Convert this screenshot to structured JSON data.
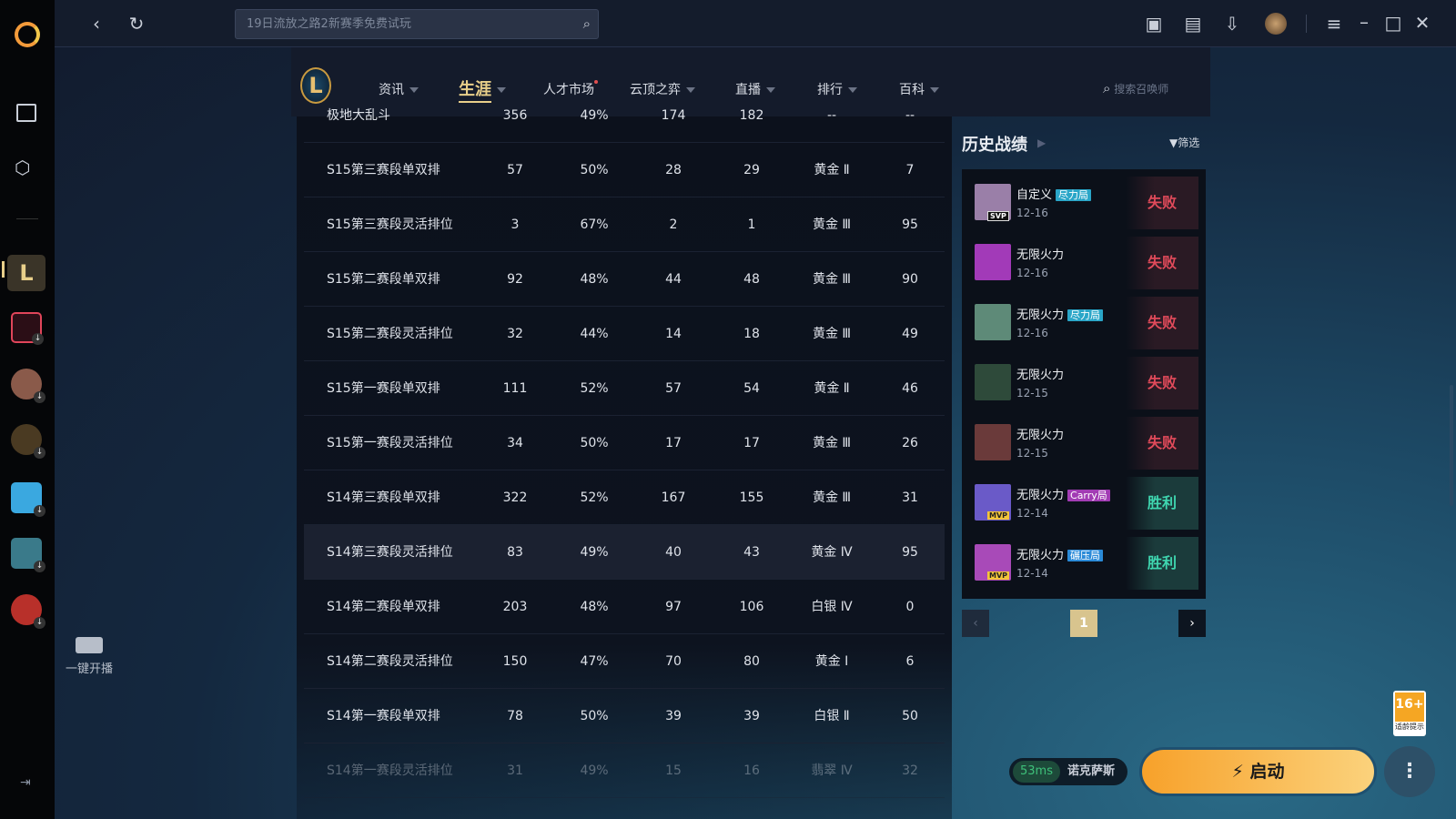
{
  "topbar": {
    "search_placeholder": "19日流放之路2新赛季免费试玩"
  },
  "sidebar": {
    "live_label": "一键开播"
  },
  "nav": {
    "items": [
      {
        "label": "资讯"
      },
      {
        "label": "生涯"
      },
      {
        "label": "人才市场"
      },
      {
        "label": "云顶之弈"
      },
      {
        "label": "直播"
      },
      {
        "label": "排行"
      },
      {
        "label": "百科"
      }
    ],
    "active": "生涯",
    "search_placeholder": "搜索召唤师"
  },
  "table": {
    "rows": [
      [
        "极地大乱斗",
        "356",
        "49%",
        "174",
        "182",
        "--",
        "--"
      ],
      [
        "S15第三赛段单双排",
        "57",
        "50%",
        "28",
        "29",
        "黄金 Ⅱ",
        "7"
      ],
      [
        "S15第三赛段灵活排位",
        "3",
        "67%",
        "2",
        "1",
        "黄金 Ⅲ",
        "95"
      ],
      [
        "S15第二赛段单双排",
        "92",
        "48%",
        "44",
        "48",
        "黄金 Ⅲ",
        "90"
      ],
      [
        "S15第二赛段灵活排位",
        "32",
        "44%",
        "14",
        "18",
        "黄金 Ⅲ",
        "49"
      ],
      [
        "S15第一赛段单双排",
        "111",
        "52%",
        "57",
        "54",
        "黄金 Ⅱ",
        "46"
      ],
      [
        "S15第一赛段灵活排位",
        "34",
        "50%",
        "17",
        "17",
        "黄金 Ⅲ",
        "26"
      ],
      [
        "S14第三赛段单双排",
        "322",
        "52%",
        "167",
        "155",
        "黄金 Ⅲ",
        "31"
      ],
      [
        "S14第三赛段灵活排位",
        "83",
        "49%",
        "40",
        "43",
        "黄金 Ⅳ",
        "95"
      ],
      [
        "S14第二赛段单双排",
        "203",
        "48%",
        "97",
        "106",
        "白银 Ⅳ",
        "0"
      ],
      [
        "S14第二赛段灵活排位",
        "150",
        "47%",
        "70",
        "80",
        "黄金 Ⅰ",
        "6"
      ],
      [
        "S14第一赛段单双排",
        "78",
        "50%",
        "39",
        "39",
        "白银 Ⅱ",
        "50"
      ],
      [
        "S14第一赛段灵活排位",
        "31",
        "49%",
        "15",
        "16",
        "翡翠 Ⅳ",
        "32"
      ]
    ]
  },
  "history": {
    "title": "历史战绩",
    "filter_label": "筛选",
    "matches": [
      {
        "mode": "自定义",
        "tag": "尽力局",
        "tag_color": "#2aa6c8",
        "date": "12-16",
        "result": "失败",
        "badge": "SVP",
        "avatar_color": "#9a7fa8"
      },
      {
        "mode": "无限火力",
        "tag": "",
        "date": "12-16",
        "result": "失败",
        "badge": "",
        "avatar_color": "#a23ab8"
      },
      {
        "mode": "无限火力",
        "tag": "尽力局",
        "tag_color": "#2aa6c8",
        "date": "12-16",
        "result": "失败",
        "badge": "",
        "avatar_color": "#5e8a78"
      },
      {
        "mode": "无限火力",
        "tag": "",
        "date": "12-15",
        "result": "失败",
        "badge": "",
        "avatar_color": "#2e4a3a"
      },
      {
        "mode": "无限火力",
        "tag": "",
        "date": "12-15",
        "result": "失败",
        "badge": "",
        "avatar_color": "#6a3a3a"
      },
      {
        "mode": "无限火力",
        "tag": "Carry局",
        "tag_color": "#a23cb4",
        "date": "12-14",
        "result": "胜利",
        "badge": "MVP",
        "avatar_color": "#6a5ac8"
      },
      {
        "mode": "无限火力",
        "tag": "碾压局",
        "tag_color": "#2a8ad8",
        "date": "12-14",
        "result": "胜利",
        "badge": "MVP",
        "avatar_color": "#a84ab8"
      }
    ],
    "page": "1"
  },
  "launch": {
    "label": "启动",
    "ping": "53ms",
    "server": "诺克萨斯",
    "age_rating": "16+",
    "age_text": "适龄提示"
  },
  "colors": {
    "accent": "#e8cf8a",
    "lose": "#e04a5a",
    "win": "#3fd6b0",
    "launch": "#f7a12a"
  }
}
